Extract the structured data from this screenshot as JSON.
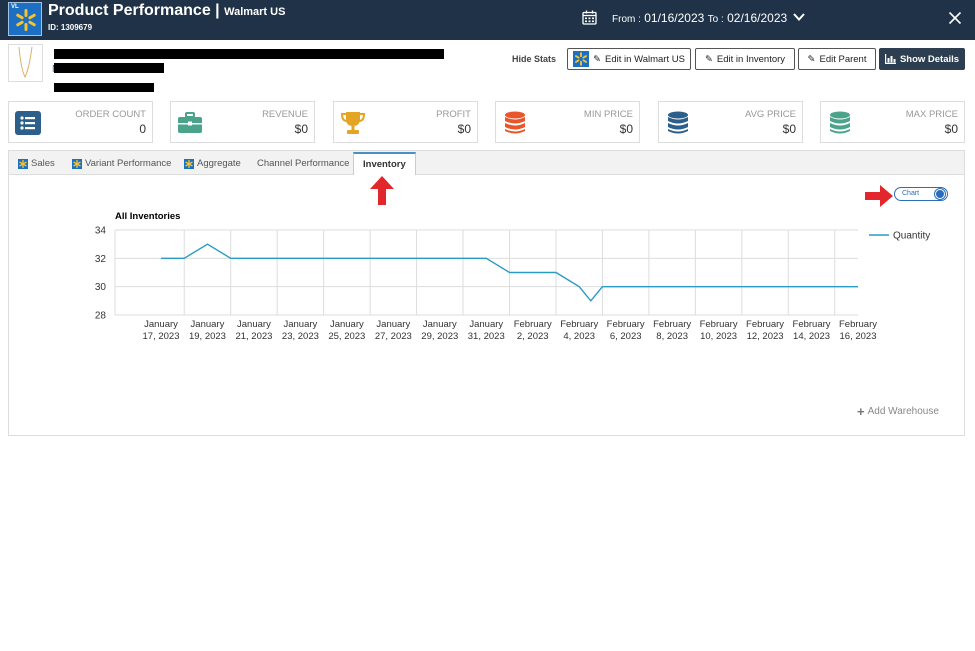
{
  "header": {
    "title": "Product Performance",
    "separator": "|",
    "subtitle": "Walmart US",
    "id_label": "ID: 1309679",
    "logo_badge": "VL",
    "date_from_label": "From :",
    "date_from": "01/16/2023",
    "date_to_label": "To :",
    "date_to": "02/16/2023",
    "bg_color": "#1f3247"
  },
  "product": {
    "link_char": "N"
  },
  "toolbar": {
    "hide_stats": "Hide Stats",
    "edit_walmart": "Edit in Walmart US",
    "edit_inventory": "Edit in Inventory",
    "edit_parent": "Edit Parent",
    "show_details": "Show Details"
  },
  "stats": [
    {
      "label": "ORDER COUNT",
      "value": "0",
      "icon": "list-icon",
      "color": "#2c5f8a"
    },
    {
      "label": "REVENUE",
      "value": "$0",
      "icon": "briefcase-icon",
      "color": "#4aa38a"
    },
    {
      "label": "PROFIT",
      "value": "$0",
      "icon": "trophy-icon",
      "color": "#e5a524"
    },
    {
      "label": "MIN PRICE",
      "value": "$0",
      "icon": "database-icon",
      "color": "#e8562a"
    },
    {
      "label": "AVG PRICE",
      "value": "$0",
      "icon": "database-icon",
      "color": "#2c5f8a"
    },
    {
      "label": "MAX PRICE",
      "value": "$0",
      "icon": "database-icon",
      "color": "#4aa38a"
    }
  ],
  "tabs": [
    {
      "label": "Sales",
      "has_icon": true
    },
    {
      "label": "Variant Performance",
      "has_icon": true
    },
    {
      "label": "Aggregate",
      "has_icon": true
    },
    {
      "label": "Channel Performance",
      "has_icon": false
    },
    {
      "label": "Inventory",
      "active": true
    }
  ],
  "toggle": {
    "label": "Chart"
  },
  "add_warehouse": "Add Warehouse",
  "chart_data": {
    "type": "line",
    "title": "All Inventories",
    "xlabel": "",
    "ylabel": "",
    "ylim": [
      28,
      34
    ],
    "yticks": [
      "34",
      "32",
      "30",
      "28"
    ],
    "x_ticks": [
      [
        "January",
        "17, 2023"
      ],
      [
        "January",
        "19, 2023"
      ],
      [
        "January",
        "21, 2023"
      ],
      [
        "January",
        "23, 2023"
      ],
      [
        "January",
        "25, 2023"
      ],
      [
        "January",
        "27, 2023"
      ],
      [
        "January",
        "29, 2023"
      ],
      [
        "January",
        "31, 2023"
      ],
      [
        "February",
        "2, 2023"
      ],
      [
        "February",
        "4, 2023"
      ],
      [
        "February",
        "6, 2023"
      ],
      [
        "February",
        "8, 2023"
      ],
      [
        "February",
        "10, 2023"
      ],
      [
        "February",
        "12, 2023"
      ],
      [
        "February",
        "14, 2023"
      ],
      [
        "February",
        "16, 2023"
      ]
    ],
    "legend": "right",
    "series": [
      {
        "name": "Quantity",
        "color": "#2a9bc4",
        "points": [
          [
            "2023-01-17",
            32
          ],
          [
            "2023-01-18",
            32
          ],
          [
            "2023-01-19",
            33
          ],
          [
            "2023-01-20",
            32
          ],
          [
            "2023-01-31",
            32
          ],
          [
            "2023-02-01",
            31
          ],
          [
            "2023-02-03",
            31
          ],
          [
            "2023-02-04",
            30
          ],
          [
            "2023-02-04T12",
            29
          ],
          [
            "2023-02-05",
            30
          ],
          [
            "2023-02-16",
            30
          ]
        ]
      }
    ]
  },
  "annotations": {
    "arrow_color": "#e3262b"
  }
}
